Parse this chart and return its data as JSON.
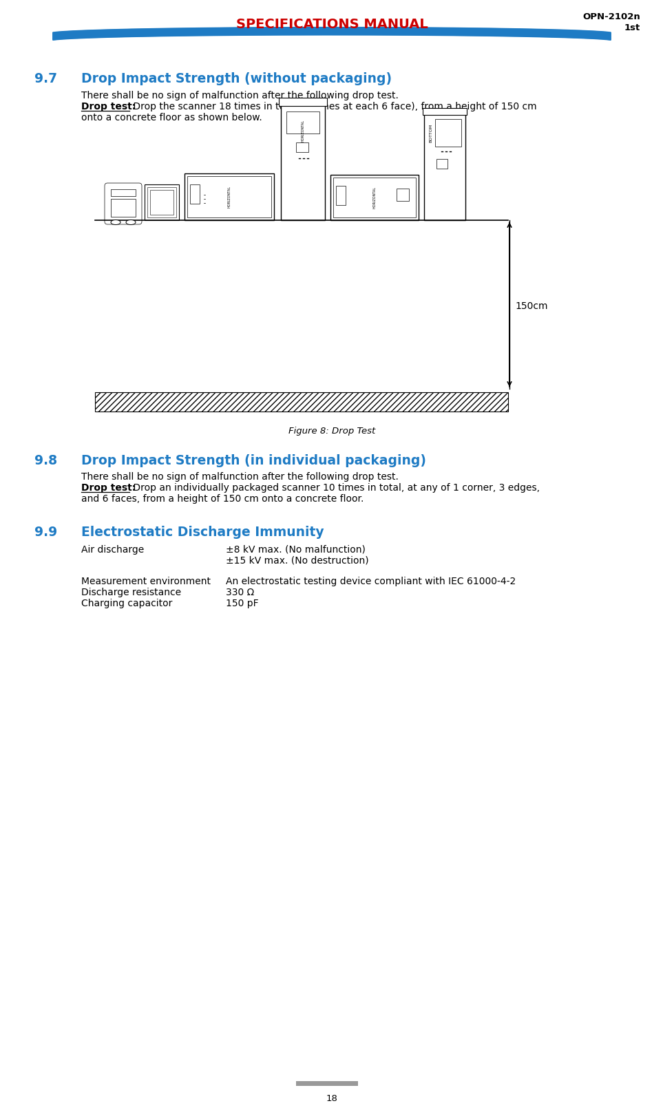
{
  "header_title": "SPECIFICATIONS MANUAL",
  "header_title_color": "#CC0000",
  "header_bar_color": "#1E7BC4",
  "header_right_line1": "OPN-2102n",
  "header_right_line2": "1st",
  "page_number": "18",
  "bg_color": "#FFFFFF",
  "section_97_number": "9.7",
  "section_97_title": "Drop Impact Strength (without packaging)",
  "section_97_color": "#1E7BC4",
  "section_97_body1": "There shall be no sign of malfunction after the following drop test.",
  "section_97_drop_bold": "Drop test:",
  "section_97_drop_rest": " Drop the scanner 18 times in total (3 times at each 6 face), from a height of 150 cm",
  "section_97_drop_rest2": "onto a concrete floor as shown below.",
  "figure_caption": "Figure 8: Drop Test",
  "height_label": "150cm",
  "section_98_number": "9.8",
  "section_98_title": "Drop Impact Strength (in individual packaging)",
  "section_98_color": "#1E7BC4",
  "section_98_body1": "There shall be no sign of malfunction after the following drop test.",
  "section_98_drop_bold": "Drop test:",
  "section_98_drop_rest": " Drop an individually packaged scanner 10 times in total, at any of 1 corner, 3 edges,",
  "section_98_drop_rest2": "and 6 faces, from a height of 150 cm onto a concrete floor.",
  "section_99_number": "9.9",
  "section_99_title": "Electrostatic Discharge Immunity",
  "section_99_color": "#1E7BC4",
  "air_discharge_label": "Air discharge",
  "air_discharge_val1": "±8 kV max. (No malfunction)",
  "air_discharge_val2": "±15 kV max. (No destruction)",
  "meas_env_label": "Measurement environment",
  "meas_env_val": "An electrostatic testing device compliant with IEC 61000-4-2",
  "disc_res_label": "Discharge resistance",
  "disc_res_val": "330 Ω",
  "chg_cap_label": "Charging capacitor",
  "chg_cap_val": "150 pF",
  "text_color": "#000000",
  "body_font_size": 10.0,
  "section_num_font_size": 13.5,
  "section_title_font_size": 13.5,
  "header_font_size": 14
}
